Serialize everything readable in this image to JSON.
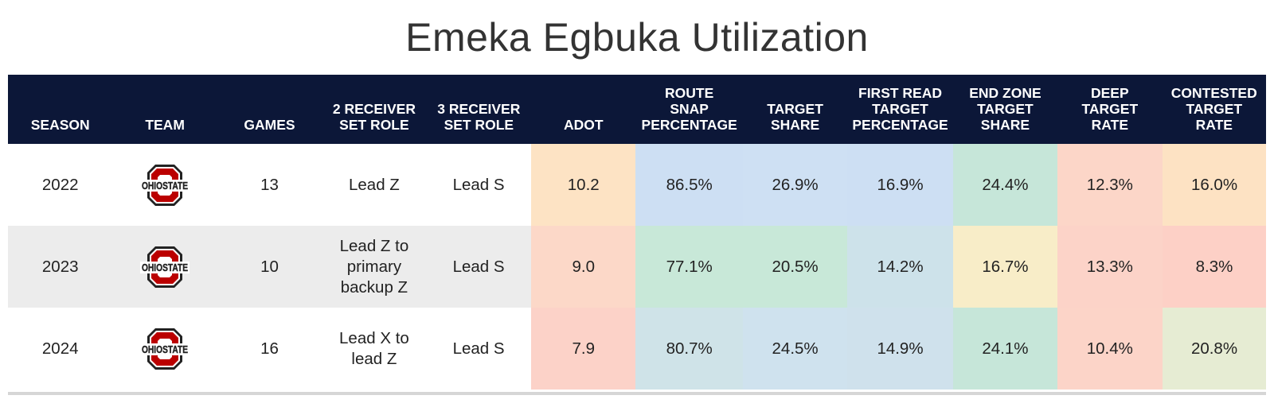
{
  "title": "Emeka Egbuka Utilization",
  "columns": [
    {
      "key": "season",
      "label": "SEASON"
    },
    {
      "key": "team",
      "label": "TEAM"
    },
    {
      "key": "games",
      "label": "GAMES"
    },
    {
      "key": "role2",
      "label": "2 RECEIVER\nSET ROLE"
    },
    {
      "key": "role3",
      "label": "3 RECEIVER\nSET ROLE"
    },
    {
      "key": "adot",
      "label": "ADOT"
    },
    {
      "key": "route_snap",
      "label": "ROUTE\nSNAP\nPERCENTAGE"
    },
    {
      "key": "target_share",
      "label": "TARGET\nSHARE"
    },
    {
      "key": "first_read",
      "label": "FIRST READ\nTARGET\nPERCENTAGE"
    },
    {
      "key": "end_zone",
      "label": "END ZONE\nTARGET\nSHARE"
    },
    {
      "key": "deep",
      "label": "DEEP\nTARGET\nRATE"
    },
    {
      "key": "contested",
      "label": "CONTESTED\nTARGET\nRATE"
    }
  ],
  "team_logo": {
    "icon": "ohio-state-logo",
    "text": "OHIOSTATE",
    "color": "#bb0000"
  },
  "rows": [
    {
      "season": "2022",
      "games": "13",
      "role2": "Lead Z",
      "role3": "Lead S",
      "adot": "10.2",
      "route_snap": "86.5%",
      "target_share": "26.9%",
      "first_read": "16.9%",
      "end_zone": "24.4%",
      "deep": "12.3%",
      "contested": "16.0%"
    },
    {
      "season": "2023",
      "games": "10",
      "role2": "Lead Z to primary backup Z",
      "role3": "Lead S",
      "adot": "9.0",
      "route_snap": "77.1%",
      "target_share": "20.5%",
      "first_read": "14.2%",
      "end_zone": "16.7%",
      "deep": "13.3%",
      "contested": "8.3%"
    },
    {
      "season": "2024",
      "games": "16",
      "role2": "Lead X to lead Z",
      "role3": "Lead S",
      "adot": "7.9",
      "route_snap": "80.7%",
      "target_share": "24.5%",
      "first_read": "14.9%",
      "end_zone": "24.1%",
      "deep": "10.4%",
      "contested": "20.8%"
    }
  ],
  "cell_colors": [
    {
      "adot": "#fde3c4",
      "route_snap": "#cddff3",
      "target_share": "#cee0f3",
      "first_read": "#cddff3",
      "end_zone": "#c6e6d9",
      "deep": "#fcd6c8",
      "contested": "#fde2c3"
    },
    {
      "adot": "#fcd8c8",
      "route_snap": "#c8e8d8",
      "target_share": "#c8e8d8",
      "first_read": "#cde2ea",
      "end_zone": "#f8edc8",
      "deep": "#fcd3c8",
      "contested": "#fdd0c6"
    },
    {
      "adot": "#fcd2c8",
      "route_snap": "#cfe3e8",
      "target_share": "#cfe2ee",
      "first_read": "#cfe1ec",
      "end_zone": "#c6e6d9",
      "deep": "#fcd4c8",
      "contested": "#e6ecd3"
    }
  ],
  "chart_data": {
    "type": "table",
    "title": "Emeka Egbuka Utilization",
    "columns": [
      "SEASON",
      "TEAM",
      "GAMES",
      "2 RECEIVER SET ROLE",
      "3 RECEIVER SET ROLE",
      "ADOT",
      "ROUTE SNAP PERCENTAGE",
      "TARGET SHARE",
      "FIRST READ TARGET PERCENTAGE",
      "END ZONE TARGET SHARE",
      "DEEP TARGET RATE",
      "CONTESTED TARGET RATE"
    ],
    "rows": [
      [
        "2022",
        "Ohio State",
        "13",
        "Lead Z",
        "Lead S",
        "10.2",
        "86.5%",
        "26.9%",
        "16.9%",
        "24.4%",
        "12.3%",
        "16.0%"
      ],
      [
        "2023",
        "Ohio State",
        "10",
        "Lead Z to primary backup Z",
        "Lead S",
        "9.0",
        "77.1%",
        "20.5%",
        "14.2%",
        "16.7%",
        "13.3%",
        "8.3%"
      ],
      [
        "2024",
        "Ohio State",
        "16",
        "Lead X to lead Z",
        "Lead S",
        "7.9",
        "80.7%",
        "24.5%",
        "14.9%",
        "24.1%",
        "10.4%",
        "20.8%"
      ]
    ]
  }
}
